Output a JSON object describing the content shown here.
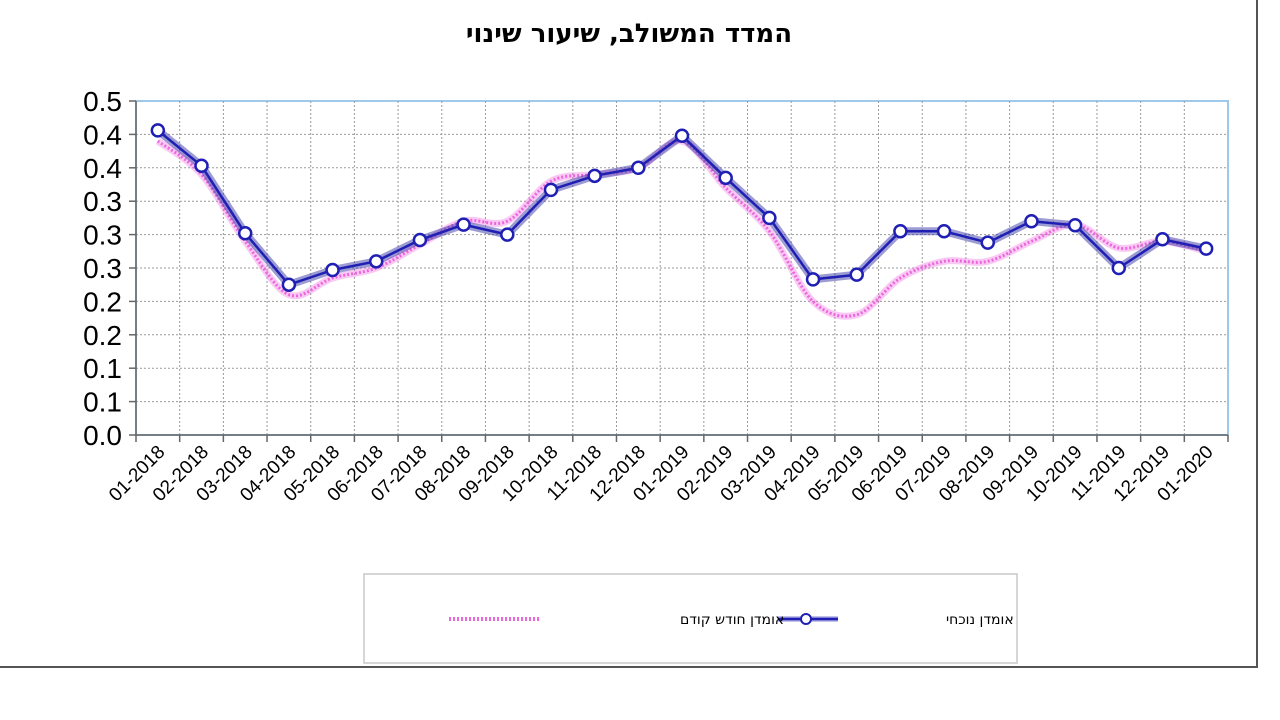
{
  "chart_data": {
    "type": "line",
    "title": "המדד המשולב, שיעור שינוי",
    "xlabel": "",
    "ylabel": "",
    "ylim": [
      0,
      0.5
    ],
    "y_tick_values": [
      0,
      0.05,
      0.1,
      0.15,
      0.2,
      0.25,
      0.3,
      0.35,
      0.4,
      0.45,
      0.5
    ],
    "y_tick_labels": [
      "0.0",
      "0.1",
      "0.1",
      "0.2",
      "0.2",
      "0.3",
      "0.3",
      "0.3",
      "0.4",
      "0.4",
      "0.5"
    ],
    "categories": [
      "01-2018",
      "02-2018",
      "03-2018",
      "04-2018",
      "05-2018",
      "06-2018",
      "07-2018",
      "08-2018",
      "09-2018",
      "10-2018",
      "11-2018",
      "12-2018",
      "01-2019",
      "02-2019",
      "03-2019",
      "04-2019",
      "05-2019",
      "06-2019",
      "07-2019",
      "08-2019",
      "09-2019",
      "10-2019",
      "11-2019",
      "12-2019",
      "01-2020"
    ],
    "grid": true,
    "legend_position": "bottom",
    "series": [
      {
        "name": "אומדן נוכחי",
        "color": "#1f1fb4",
        "marker": "circle",
        "values": [
          0.456,
          0.403,
          0.302,
          0.225,
          0.247,
          0.26,
          0.292,
          0.315,
          0.3,
          0.367,
          0.388,
          0.4,
          0.448,
          0.385,
          0.325,
          0.233,
          0.24,
          0.305,
          0.305,
          0.288,
          0.32,
          0.314,
          0.25,
          0.293,
          0.279
        ]
      },
      {
        "name": "אומדן חודש קודם",
        "color": "#ee66dd",
        "marker": "none",
        "values": [
          0.44,
          0.39,
          0.29,
          0.21,
          0.235,
          0.25,
          0.285,
          0.32,
          0.32,
          0.38,
          0.39,
          0.4,
          0.44,
          0.37,
          0.305,
          0.2,
          0.18,
          0.235,
          0.26,
          0.26,
          0.29,
          0.315,
          0.28,
          0.29,
          0.275
        ]
      }
    ]
  }
}
